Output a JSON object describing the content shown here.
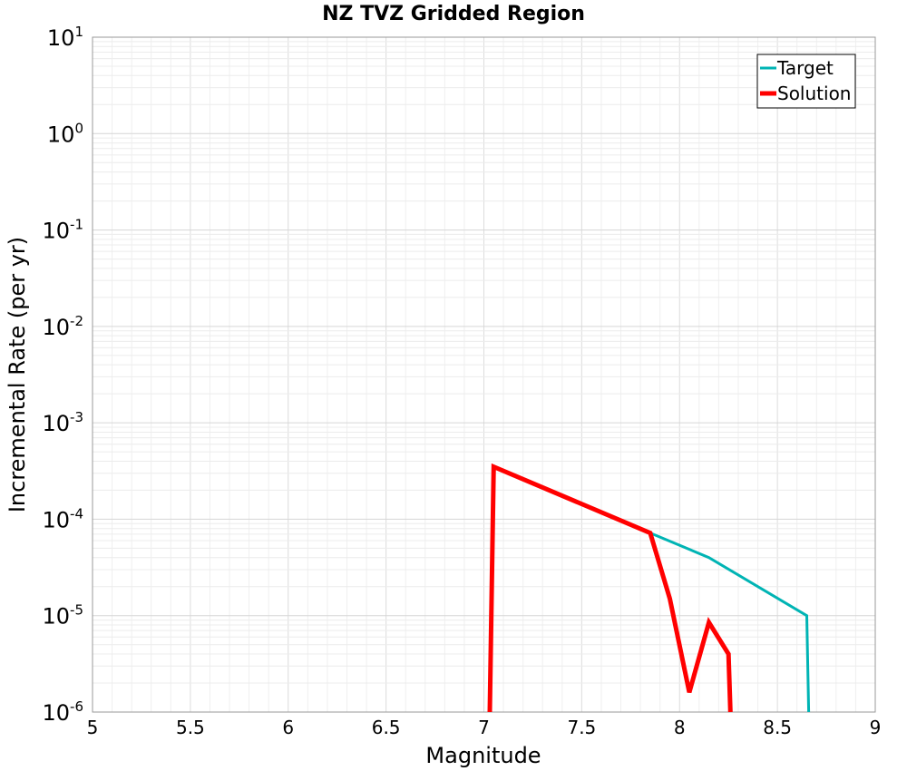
{
  "chart_data": {
    "type": "line",
    "title": "NZ TVZ Gridded Region",
    "xlabel": "Magnitude",
    "ylabel": "Incremental Rate (per yr)",
    "xlim": [
      5,
      9
    ],
    "ylim_log10": [
      -6,
      1
    ],
    "yscale": "log",
    "grid": true,
    "legend_position": "top-right",
    "x_ticks": [
      "5",
      "5.5",
      "6",
      "6.5",
      "7",
      "7.5",
      "8",
      "8.5",
      "9"
    ],
    "y_ticks": [
      {
        "base": "10",
        "exp": "1"
      },
      {
        "base": "10",
        "exp": "0"
      },
      {
        "base": "10",
        "exp": "-1"
      },
      {
        "base": "10",
        "exp": "-2"
      },
      {
        "base": "10",
        "exp": "-3"
      },
      {
        "base": "10",
        "exp": "-4"
      },
      {
        "base": "10",
        "exp": "-5"
      },
      {
        "base": "10",
        "exp": "-6"
      }
    ],
    "series": [
      {
        "name": "Target",
        "color": "#00b4b4",
        "x": [
          7.85,
          8.15,
          8.65,
          8.66
        ],
        "y": [
          7.2e-05,
          4e-05,
          1e-05,
          1e-06
        ]
      },
      {
        "name": "Solution",
        "color": "#ff0000",
        "x": [
          7.03,
          7.05,
          7.85,
          7.95,
          8.05,
          8.15,
          8.25,
          8.26
        ],
        "y": [
          1e-06,
          0.00035,
          7.2e-05,
          1.5e-05,
          1.6e-06,
          8.5e-06,
          4e-06,
          1e-06
        ]
      }
    ]
  }
}
